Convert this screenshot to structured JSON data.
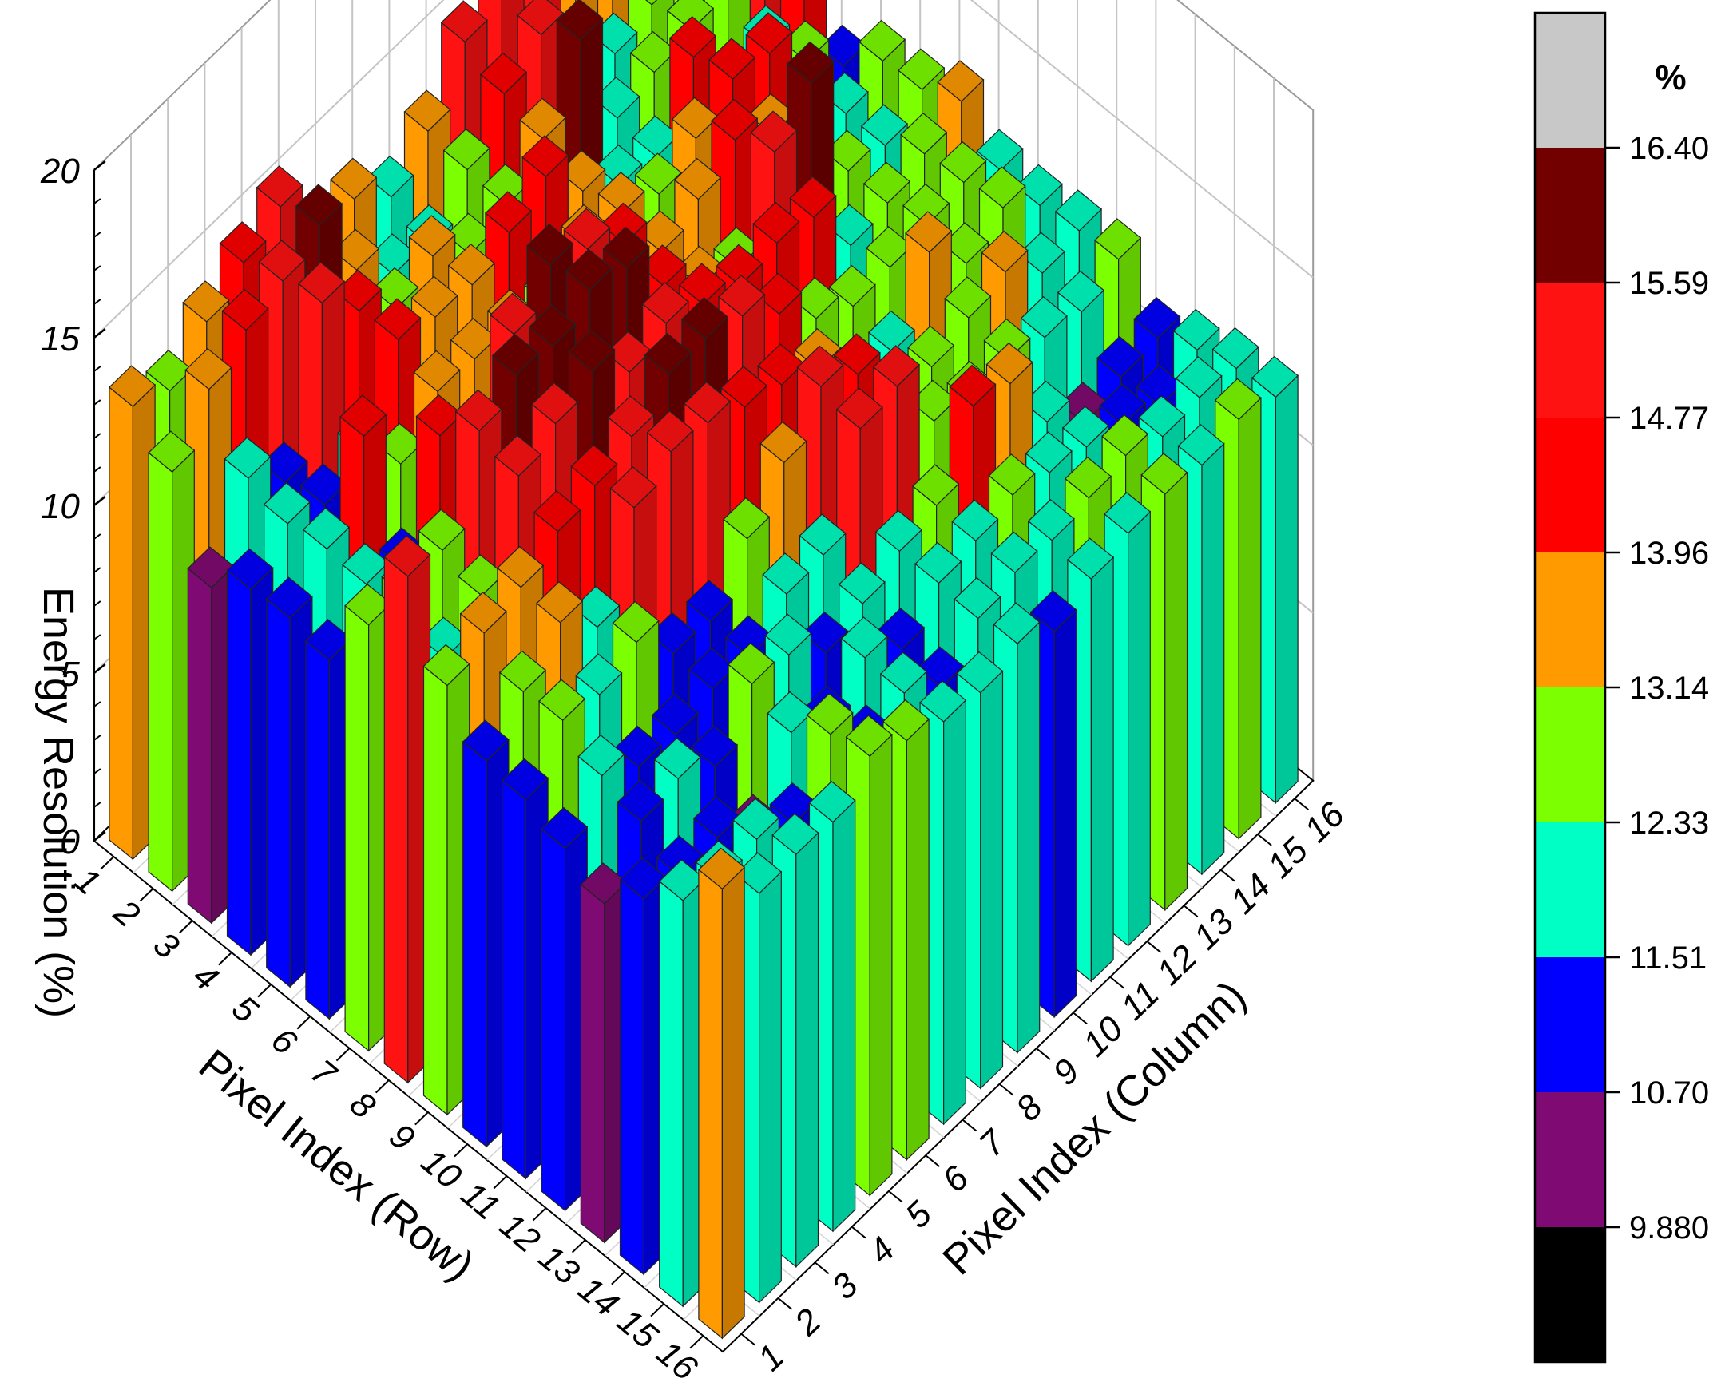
{
  "chart_data": {
    "type": "bar3d",
    "rows": [
      1,
      2,
      3,
      4,
      5,
      6,
      7,
      8,
      9,
      10,
      11,
      12,
      13,
      14,
      15,
      16
    ],
    "columns": [
      1,
      2,
      3,
      4,
      5,
      6,
      7,
      8,
      9,
      10,
      11,
      12,
      13,
      14,
      15,
      16
    ],
    "values": [
      [
        13.5,
        12.9,
        13.9,
        14.6,
        15.2,
        13.0,
        13.3,
        12.3,
        13.2,
        14.8,
        15.3,
        14.8,
        13.5,
        13.2,
        15.5,
        16.2
      ],
      [
        12.5,
        13.9,
        14.6,
        15.0,
        15.6,
        13.2,
        12.0,
        11.8,
        13.0,
        14.2,
        14.9,
        12.1,
        12.2,
        12.6,
        12.4,
        14.8
      ],
      [
        10.0,
        12.2,
        11.0,
        15.3,
        14.0,
        13.0,
        13.5,
        12.5,
        12.9,
        13.8,
        15.7,
        12.3,
        12.6,
        12.8,
        12.8,
        14.8
      ],
      [
        10.9,
        11.8,
        11.3,
        11.8,
        14.1,
        13.7,
        13.6,
        14.1,
        14.7,
        13.2,
        12.3,
        12.1,
        14.0,
        11.3,
        12.2,
        14.6
      ],
      [
        11.0,
        12.0,
        14.3,
        12.4,
        13.5,
        13.4,
        13.2,
        12.9,
        13.6,
        13.5,
        13.0,
        13.6,
        14.3,
        14.0,
        12.7,
        11.5
      ],
      [
        10.7,
        11.9,
        11.3,
        14.2,
        12.3,
        15.1,
        16.1,
        15.5,
        14.6,
        13.3,
        13.8,
        14.5,
        13.6,
        12.5,
        12.1,
        12.6
      ],
      [
        12.7,
        12.5,
        12.8,
        15.3,
        15.9,
        15.7,
        16.3,
        15.9,
        14.3,
        13.2,
        12.7,
        15.1,
        16.1,
        12.4,
        12.1,
        12.7
      ],
      [
        15.1,
        11.6,
        12.4,
        14.9,
        15.4,
        15.9,
        14.8,
        15.2,
        14.7,
        14.2,
        14.4,
        14.1,
        12.2,
        12.4,
        12.8,
        13.3
      ],
      [
        12.8,
        13.3,
        13.6,
        14.2,
        14.5,
        14.9,
        15.7,
        15.7,
        15.3,
        14.3,
        13.1,
        12.4,
        12.5,
        12.7,
        12.9,
        12.2
      ],
      [
        11.5,
        12.5,
        13.5,
        12.3,
        14.8,
        15.4,
        15.2,
        14.6,
        14.2,
        13.6,
        11.7,
        12.0,
        13.9,
        12.5,
        13.1,
        12.1
      ],
      [
        11.3,
        12.6,
        12.3,
        12.8,
        11.4,
        11.3,
        12.7,
        13.9,
        15.1,
        14.4,
        12.6,
        12.5,
        12.9,
        13.2,
        12.1,
        12.3
      ],
      [
        10.8,
        11.9,
        11.1,
        11.0,
        11.3,
        11.2,
        12.0,
        12.1,
        14.8,
        15.0,
        12.9,
        12.4,
        12.6,
        12.2,
        11.9,
        12.4
      ],
      [
        10.1,
        11.5,
        11.7,
        11.0,
        12.4,
        12.2,
        11.2,
        11.6,
        12.1,
        12.4,
        14.3,
        13.9,
        11.7,
        10.6,
        10.9,
        11.0
      ],
      [
        11.2,
        10.8,
        10.9,
        9.9,
        11.9,
        11.0,
        12.0,
        11.2,
        12.1,
        12.3,
        12.6,
        12.2,
        11.9,
        11.5,
        11.0,
        11.6
      ],
      [
        12.1,
        11.6,
        11.8,
        11.2,
        12.8,
        11.4,
        11.9,
        11.0,
        12.0,
        12.3,
        12.2,
        12.4,
        12.6,
        12.1,
        12.2,
        12.0
      ],
      [
        13.4,
        12.2,
        12.3,
        12.2,
        13.1,
        12.5,
        12.0,
        11.8,
        12.2,
        11.5,
        12.0,
        12.3,
        12.4,
        12.2,
        12.5,
        12.1
      ]
    ],
    "zlim": [
      0,
      20
    ],
    "zticks": [
      "0",
      "5",
      "10",
      "15",
      "20"
    ],
    "xlabel": "Pixel Index (Row)",
    "ylabel": "Pixel Index (Column)",
    "zlabel": "Energy Resolution (%)",
    "grid": true,
    "colorbar": {
      "title": "%",
      "levels": [
        "9.880",
        "10.70",
        "11.51",
        "12.33",
        "13.14",
        "13.96",
        "14.77",
        "15.59",
        "16.40"
      ],
      "colors": [
        "#000000",
        "#800a73",
        "#0000ff",
        "#00ffc4",
        "#7cff00",
        "#ff9a00",
        "#ff0000",
        "#ff1212",
        "#730000",
        "#c8c8c8"
      ],
      "placement": "right"
    }
  }
}
